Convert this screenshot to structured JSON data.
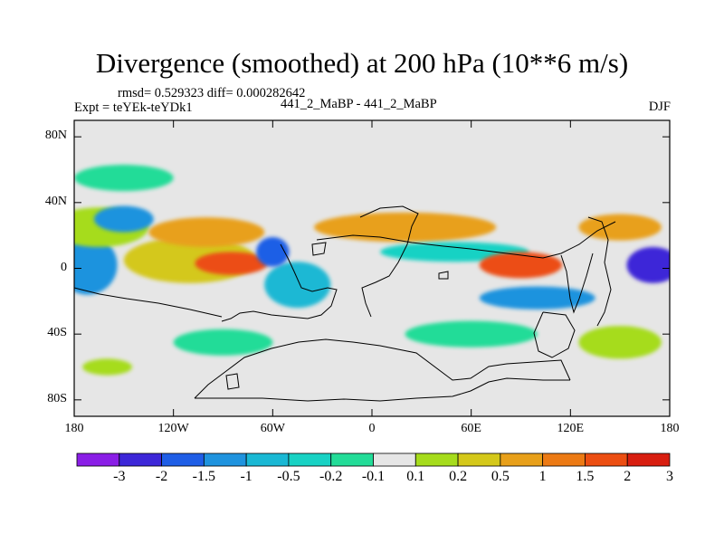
{
  "chart_data": {
    "type": "heatmap",
    "title": "Divergence (smoothed) at 200 hPa (10**6 m/s)",
    "rmsd_text": "rmsd= 0.529323 diff= 0.000282642",
    "experiment_text": "Expt = teYEk-teYDk1",
    "center_text": "441_2_MaBP - 441_2_MaBP",
    "season": "DJF",
    "xlim": [
      -180,
      180
    ],
    "ylim": [
      -90,
      90
    ],
    "x_ticks": [
      {
        "value": -180,
        "label": "180"
      },
      {
        "value": -120,
        "label": "120W"
      },
      {
        "value": -60,
        "label": "60W"
      },
      {
        "value": 0,
        "label": "0"
      },
      {
        "value": 60,
        "label": "60E"
      },
      {
        "value": 120,
        "label": "120E"
      },
      {
        "value": 180,
        "label": "180"
      }
    ],
    "y_ticks": [
      {
        "value": 80,
        "label": "80N"
      },
      {
        "value": 40,
        "label": "40N"
      },
      {
        "value": 0,
        "label": "0"
      },
      {
        "value": -40,
        "label": "40S"
      },
      {
        "value": -80,
        "label": "80S"
      }
    ],
    "colorbar": {
      "levels": [
        "-3",
        "-2",
        "-1.5",
        "-1",
        "-0.5",
        "-0.2",
        "-0.1",
        "0.1",
        "0.2",
        "0.5",
        "1",
        "1.5",
        "2",
        "3"
      ],
      "colors": [
        "#8a1ee6",
        "#3d27d8",
        "#1f5ee6",
        "#1f93de",
        "#1ab8d4",
        "#18d2c4",
        "#23dc98",
        "#e6e6e6",
        "#a6dc1c",
        "#d4c81a",
        "#e8a01a",
        "#ec7a14",
        "#ec4e12",
        "#d81e10"
      ]
    },
    "regions": [
      {
        "lon": -176,
        "lat": 2,
        "rx": 10,
        "ry": 10,
        "color": "#3d27d8"
      },
      {
        "lon": -172,
        "lat": 2,
        "rx": 18,
        "ry": 18,
        "color": "#1f93de"
      },
      {
        "lon": -165,
        "lat": 25,
        "rx": 30,
        "ry": 12,
        "color": "#a6dc1c"
      },
      {
        "lon": -110,
        "lat": 5,
        "rx": 40,
        "ry": 14,
        "color": "#d4c81a"
      },
      {
        "lon": -85,
        "lat": 3,
        "rx": 22,
        "ry": 7,
        "color": "#ec4e12"
      },
      {
        "lon": -100,
        "lat": 22,
        "rx": 35,
        "ry": 9,
        "color": "#e8a01a"
      },
      {
        "lon": -150,
        "lat": 30,
        "rx": 18,
        "ry": 8,
        "color": "#1f93de"
      },
      {
        "lon": -150,
        "lat": 55,
        "rx": 30,
        "ry": 8,
        "color": "#23dc98"
      },
      {
        "lon": -45,
        "lat": -10,
        "rx": 20,
        "ry": 14,
        "color": "#1ab8d4"
      },
      {
        "lon": -60,
        "lat": 10,
        "rx": 10,
        "ry": 9,
        "color": "#1f5ee6"
      },
      {
        "lon": 20,
        "lat": 25,
        "rx": 55,
        "ry": 9,
        "color": "#e8a01a"
      },
      {
        "lon": 50,
        "lat": 10,
        "rx": 45,
        "ry": 6,
        "color": "#18d2c4"
      },
      {
        "lon": 90,
        "lat": 2,
        "rx": 25,
        "ry": 8,
        "color": "#ec4e12"
      },
      {
        "lon": 100,
        "lat": -18,
        "rx": 35,
        "ry": 7,
        "color": "#1f93de"
      },
      {
        "lon": 170,
        "lat": 2,
        "rx": 16,
        "ry": 11,
        "color": "#3d27d8"
      },
      {
        "lon": 150,
        "lat": 25,
        "rx": 25,
        "ry": 8,
        "color": "#e8a01a"
      },
      {
        "lon": -160,
        "lat": -60,
        "rx": 15,
        "ry": 5,
        "color": "#a6dc1c"
      },
      {
        "lon": -90,
        "lat": -45,
        "rx": 30,
        "ry": 8,
        "color": "#23dc98"
      },
      {
        "lon": 60,
        "lat": -40,
        "rx": 40,
        "ry": 8,
        "color": "#23dc98"
      },
      {
        "lon": 150,
        "lat": -45,
        "rx": 25,
        "ry": 10,
        "color": "#a6dc1c"
      }
    ]
  }
}
